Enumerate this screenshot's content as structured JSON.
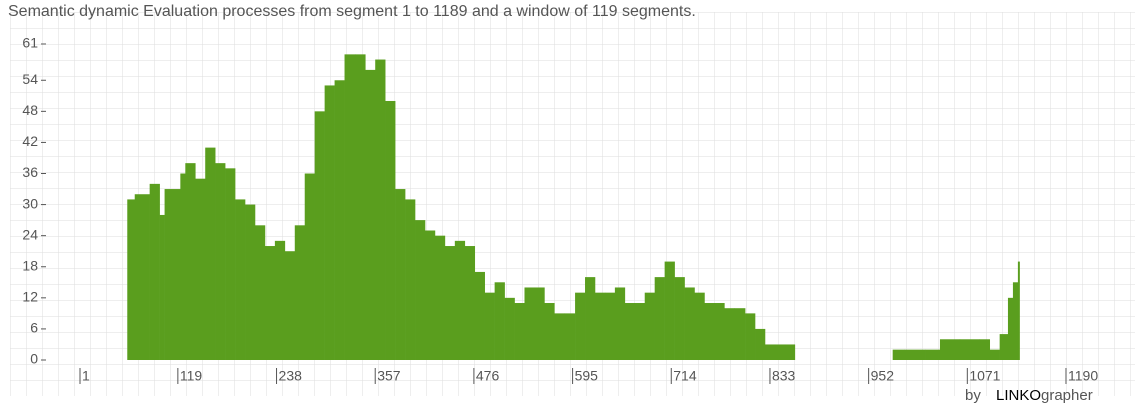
{
  "chart_data": {
    "type": "bar",
    "title": "Semantic dynamic Evaluation processes from segment 1 to 1189 and a window of 119 segments.",
    "x": [
      58,
      67,
      85,
      97,
      103,
      122,
      128,
      140,
      152,
      164,
      176,
      188,
      200,
      212,
      224,
      236,
      248,
      260,
      272,
      284,
      296,
      308,
      320,
      333,
      345,
      357,
      369,
      381,
      393,
      405,
      417,
      429,
      441,
      453,
      465,
      477,
      489,
      501,
      513,
      525,
      537,
      549,
      561,
      573,
      585,
      598,
      610,
      622,
      634,
      646,
      658,
      670,
      682,
      694,
      706,
      718,
      730,
      742,
      754,
      766,
      778,
      790,
      803,
      815,
      827,
      839,
      851,
      863,
      981,
      995,
      1020,
      1038,
      1062,
      1086,
      1098,
      1110,
      1120,
      1126,
      1132,
      1134
    ],
    "values": [
      31,
      32,
      34,
      28,
      33,
      36,
      38,
      35,
      41,
      38,
      37,
      31,
      30,
      26,
      22,
      23,
      21,
      26,
      36,
      48,
      53,
      54,
      59,
      59,
      56,
      58,
      50,
      33,
      31,
      27,
      25,
      24,
      22,
      23,
      22,
      17,
      13,
      15,
      12,
      11,
      14,
      14,
      11,
      9,
      9,
      13,
      16,
      13,
      13,
      14,
      11,
      11,
      13,
      16,
      19,
      16,
      14,
      13,
      11,
      11,
      10,
      10,
      9,
      6,
      3,
      3,
      3,
      null,
      2,
      2,
      2,
      4,
      4,
      4,
      2,
      5,
      12,
      15,
      19,
      null
    ],
    "color": "#5a9e1e",
    "xlim": [
      1,
      1190
    ],
    "xticks": [
      1,
      119,
      238,
      357,
      476,
      595,
      714,
      833,
      952,
      1071,
      1190
    ],
    "ylim": [
      0,
      61
    ],
    "yticks": [
      0,
      6,
      12,
      18,
      24,
      30,
      36,
      42,
      48,
      54,
      61
    ],
    "credit": {
      "prefix": "by",
      "brand": "LINKO",
      "suffix": "grapher"
    }
  }
}
